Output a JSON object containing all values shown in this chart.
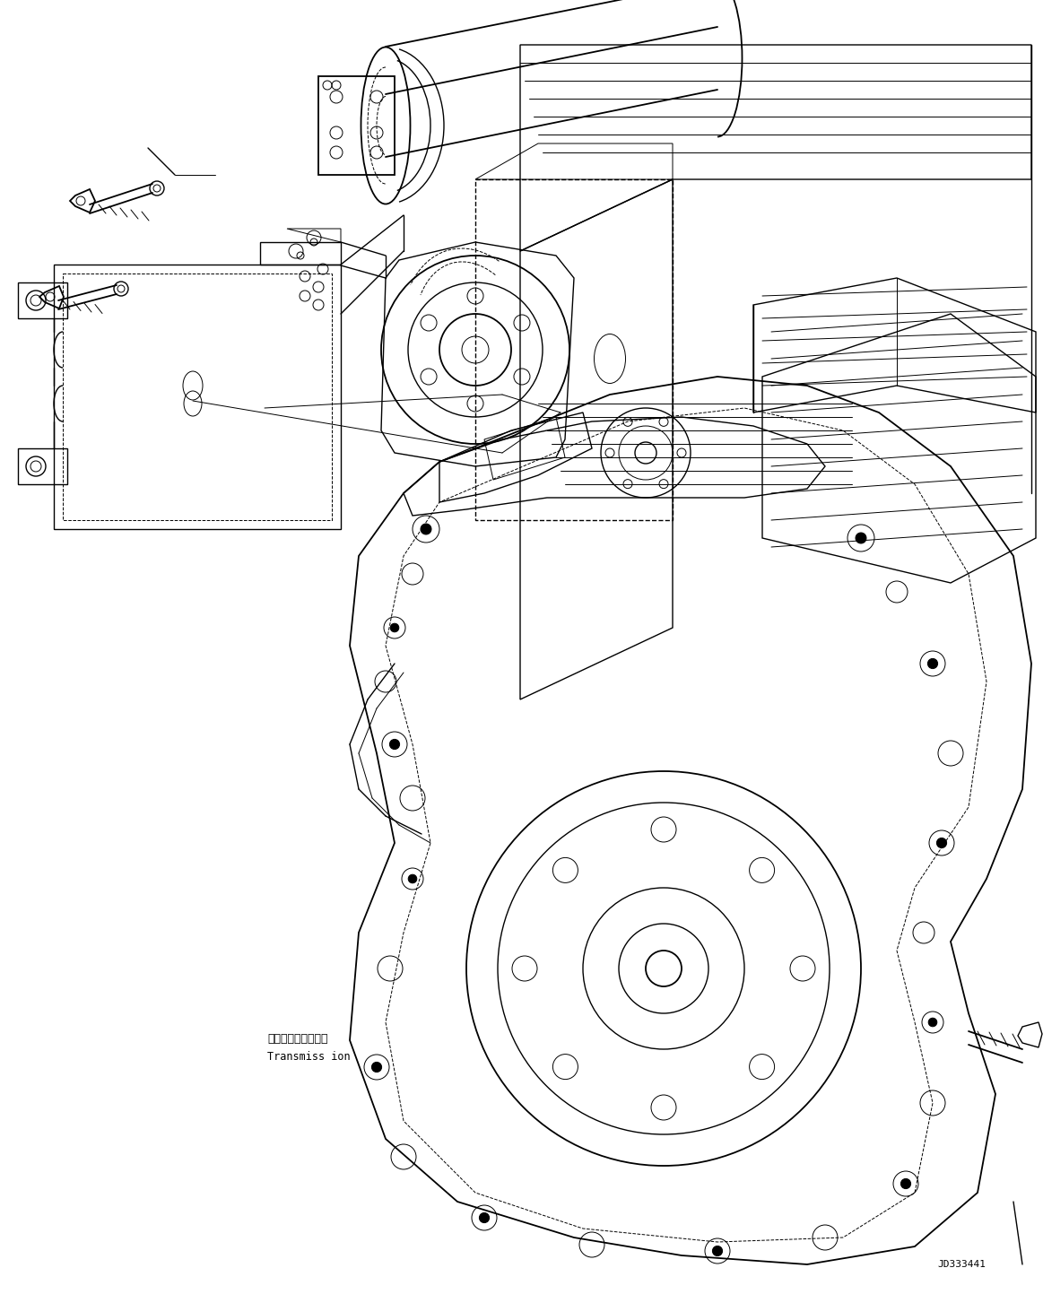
{
  "background_color": "#ffffff",
  "line_color": "#000000",
  "figure_width": 11.63,
  "figure_height": 14.43,
  "dpi": 100,
  "watermark_text": "JD333441",
  "watermark_fontsize": 8,
  "label_japanese": "トランスミッション",
  "label_english": "Transmiss ion",
  "label_fontsize": 9
}
